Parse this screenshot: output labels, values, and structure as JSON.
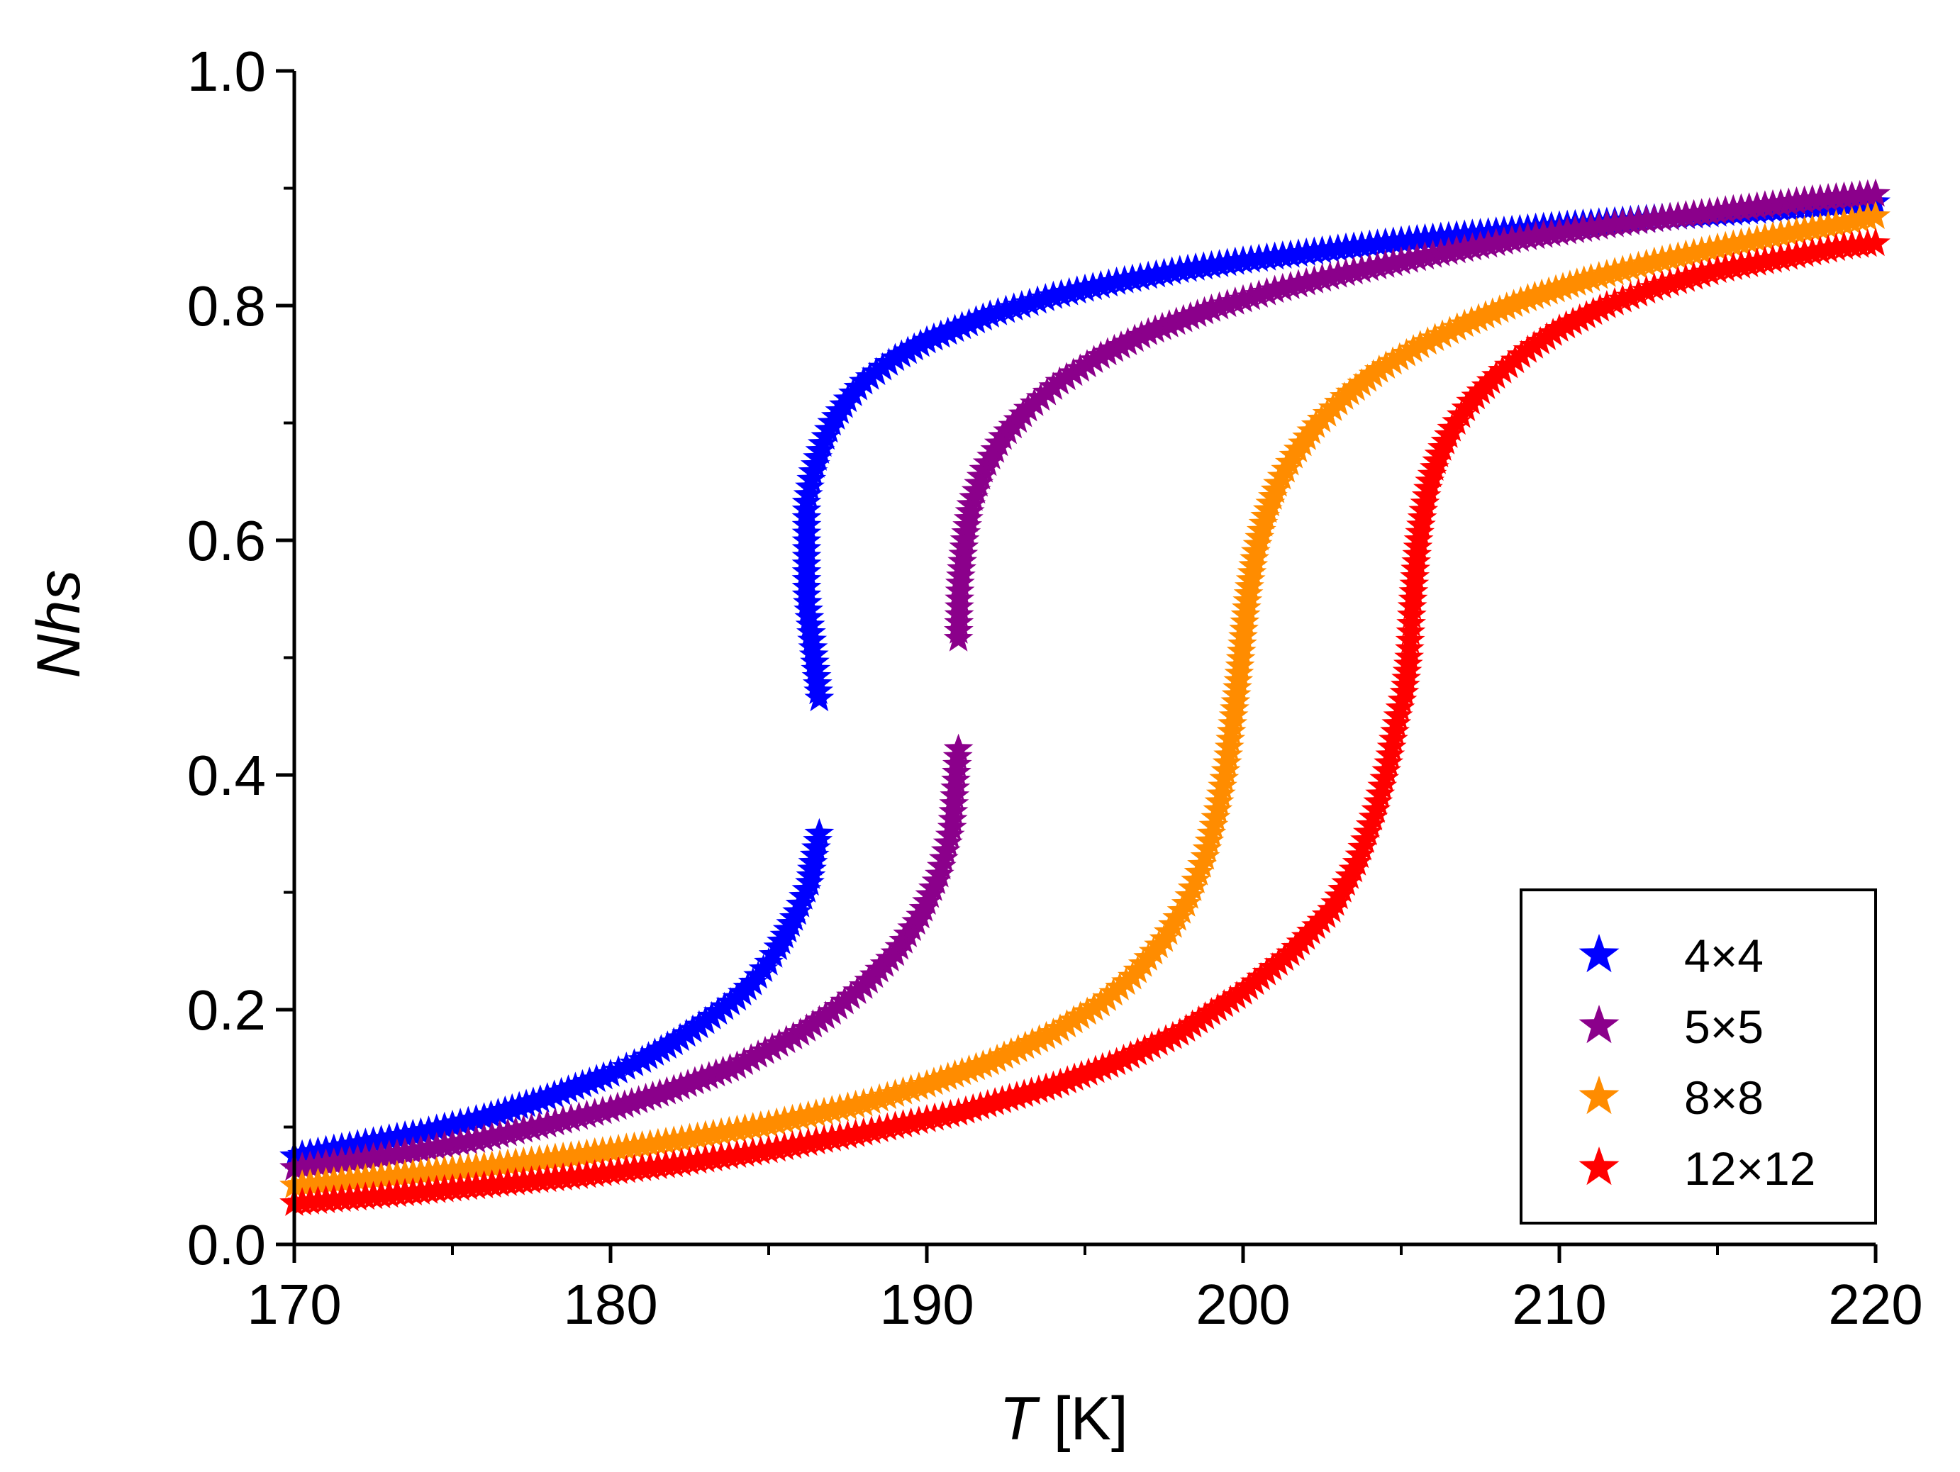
{
  "chart_data": {
    "type": "scatter",
    "marker": "star",
    "xlabel_italic": "T",
    "xlabel_rest": " [K]",
    "ylabel": "Nhs",
    "xlim": [
      170,
      220
    ],
    "ylim": [
      0.0,
      1.0
    ],
    "xticks": [
      170,
      180,
      190,
      200,
      210,
      220
    ],
    "xtick_labels": [
      "170",
      "180",
      "190",
      "200",
      "210",
      "220"
    ],
    "xminor_step": 5,
    "yticks": [
      0.0,
      0.2,
      0.4,
      0.6,
      0.8,
      1.0
    ],
    "ytick_labels": [
      "0.0",
      "0.2",
      "0.4",
      "0.6",
      "0.8",
      "1.0"
    ],
    "yminor_step": 0.1,
    "legend_position": "bottom-right",
    "series": [
      {
        "name": "4×4",
        "color": "#0000ff",
        "branches": [
          {
            "x": [
              170,
              172,
              174,
              176,
              178,
              180,
              181,
              182,
              183,
              184,
              184.5,
              185,
              185.3,
              185.6,
              185.9,
              186.1,
              186.3,
              186.4,
              186.6
            ],
            "y": [
              0.075,
              0.085,
              0.095,
              0.108,
              0.125,
              0.145,
              0.157,
              0.172,
              0.19,
              0.21,
              0.223,
              0.24,
              0.253,
              0.268,
              0.283,
              0.296,
              0.308,
              0.325,
              0.35
            ]
          },
          {
            "x": [
              186.6,
              186.4,
              186.2,
              186.2,
              186.4,
              186.7,
              187,
              187.5,
              188,
              189,
              190,
              192,
              194,
              196,
              198,
              200,
              205,
              210,
              215,
              220
            ],
            "y": [
              0.465,
              0.508,
              0.553,
              0.632,
              0.658,
              0.682,
              0.7,
              0.72,
              0.735,
              0.755,
              0.77,
              0.792,
              0.808,
              0.82,
              0.83,
              0.838,
              0.855,
              0.868,
              0.878,
              0.888
            ]
          }
        ]
      },
      {
        "name": "5×5",
        "color": "#8b008b",
        "branches": [
          {
            "x": [
              170,
              172,
              174,
              176,
              178,
              180,
              182,
              184,
              186,
              187,
              188,
              189,
              189.8,
              190.4,
              190.8,
              191
            ],
            "y": [
              0.065,
              0.072,
              0.08,
              0.09,
              0.102,
              0.115,
              0.132,
              0.152,
              0.18,
              0.198,
              0.22,
              0.248,
              0.28,
              0.315,
              0.355,
              0.422
            ]
          },
          {
            "x": [
              191,
              191.05,
              191.2,
              191.4,
              191.8,
              192.4,
              193.2,
              194.2,
              195.5,
              197,
              199,
              201,
              203,
              206,
              209,
              212,
              215,
              218,
              220
            ],
            "y": [
              0.516,
              0.563,
              0.6,
              0.63,
              0.66,
              0.688,
              0.712,
              0.735,
              0.757,
              0.777,
              0.797,
              0.813,
              0.826,
              0.843,
              0.858,
              0.87,
              0.88,
              0.89,
              0.895
            ]
          }
        ]
      },
      {
        "name": "8×8",
        "color": "#ff8c00",
        "branches": [
          {
            "x": [
              170,
              173,
              176,
              179,
              182,
              185,
              188,
              190,
              192,
              194,
              195.5,
              196.5,
              197.5,
              198.2,
              198.8,
              199.2,
              199.5,
              199.7,
              199.85,
              199.95,
              200.05,
              200.2,
              200.4,
              200.7,
              201.1,
              201.6,
              202.3,
              203.2,
              204.3,
              205.6,
              207,
              209,
              211,
              213,
              215,
              217,
              219,
              220
            ],
            "y": [
              0.05,
              0.058,
              0.066,
              0.076,
              0.088,
              0.102,
              0.12,
              0.136,
              0.155,
              0.18,
              0.205,
              0.228,
              0.26,
              0.29,
              0.33,
              0.37,
              0.41,
              0.45,
              0.48,
              0.505,
              0.53,
              0.56,
              0.59,
              0.62,
              0.648,
              0.672,
              0.698,
              0.722,
              0.745,
              0.766,
              0.784,
              0.806,
              0.823,
              0.837,
              0.849,
              0.86,
              0.87,
              0.876
            ]
          }
        ]
      },
      {
        "name": "12×12",
        "color": "#ff0000",
        "branches": [
          {
            "x": [
              170,
              173,
              176,
              179,
              182,
              185,
              188,
              191,
              194,
              196,
              198,
              200,
              201.5,
              202.8,
              203.6,
              204.2,
              204.6,
              204.9,
              205.1,
              205.25,
              205.35,
              205.45,
              205.55,
              205.7,
              205.9,
              206.2,
              206.6,
              207.2,
              208,
              209,
              210,
              211.5,
              213,
              215,
              217,
              219,
              220
            ],
            "y": [
              0.035,
              0.042,
              0.05,
              0.058,
              0.068,
              0.08,
              0.095,
              0.112,
              0.135,
              0.155,
              0.18,
              0.215,
              0.248,
              0.285,
              0.325,
              0.37,
              0.41,
              0.45,
              0.47,
              0.5,
              0.543,
              0.575,
              0.6,
              0.625,
              0.65,
              0.673,
              0.695,
              0.718,
              0.74,
              0.762,
              0.78,
              0.8,
              0.815,
              0.83,
              0.84,
              0.85,
              0.853
            ]
          }
        ]
      }
    ]
  }
}
